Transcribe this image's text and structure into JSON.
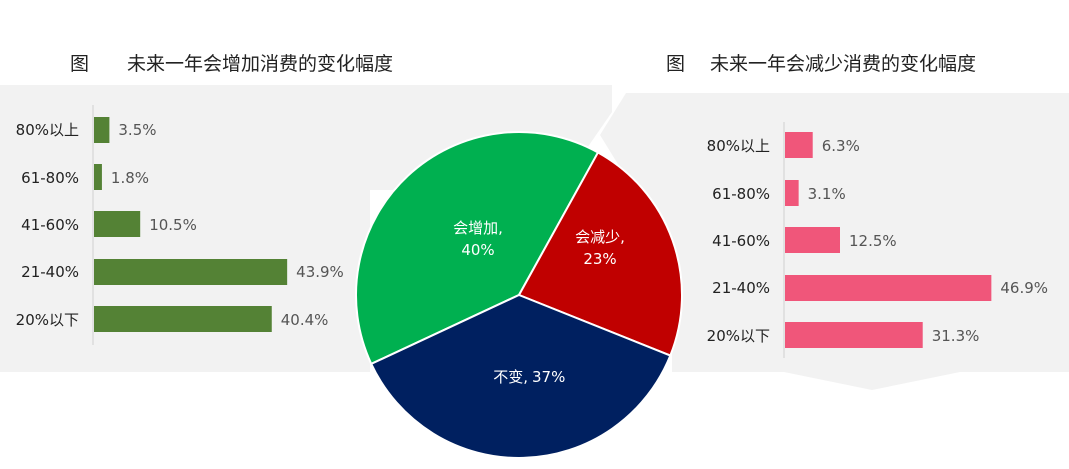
{
  "chart_data": [
    {
      "type": "bar",
      "title": "图　　未来一年会增加消费的变化幅度",
      "categories": [
        "80%以上",
        "61-80%",
        "41-60%",
        "21-40%",
        "20%以下"
      ],
      "values": [
        3.5,
        1.8,
        10.5,
        43.9,
        40.4
      ],
      "value_labels": [
        "3.5%",
        "1.8%",
        "10.5%",
        "43.9%",
        "40.4%"
      ],
      "color": "#548235"
    },
    {
      "type": "pie",
      "labels": [
        "会增加,",
        "会减少,",
        "不变,"
      ],
      "values": [
        40,
        23,
        37
      ],
      "value_labels": [
        "40%",
        "23%",
        "37%"
      ],
      "colors": [
        "#00b050",
        "#c00000",
        "#002060"
      ]
    },
    {
      "type": "bar",
      "title": "图　 未来一年会减少消费的变化幅度",
      "categories": [
        "80%以上",
        "61-80%",
        "41-60%",
        "21-40%",
        "20%以下"
      ],
      "values": [
        6.3,
        3.1,
        12.5,
        46.9,
        31.3
      ],
      "value_labels": [
        "6.3%",
        "3.1%",
        "12.5%",
        "46.9%",
        "31.3%"
      ],
      "color": "#f0567a"
    }
  ]
}
